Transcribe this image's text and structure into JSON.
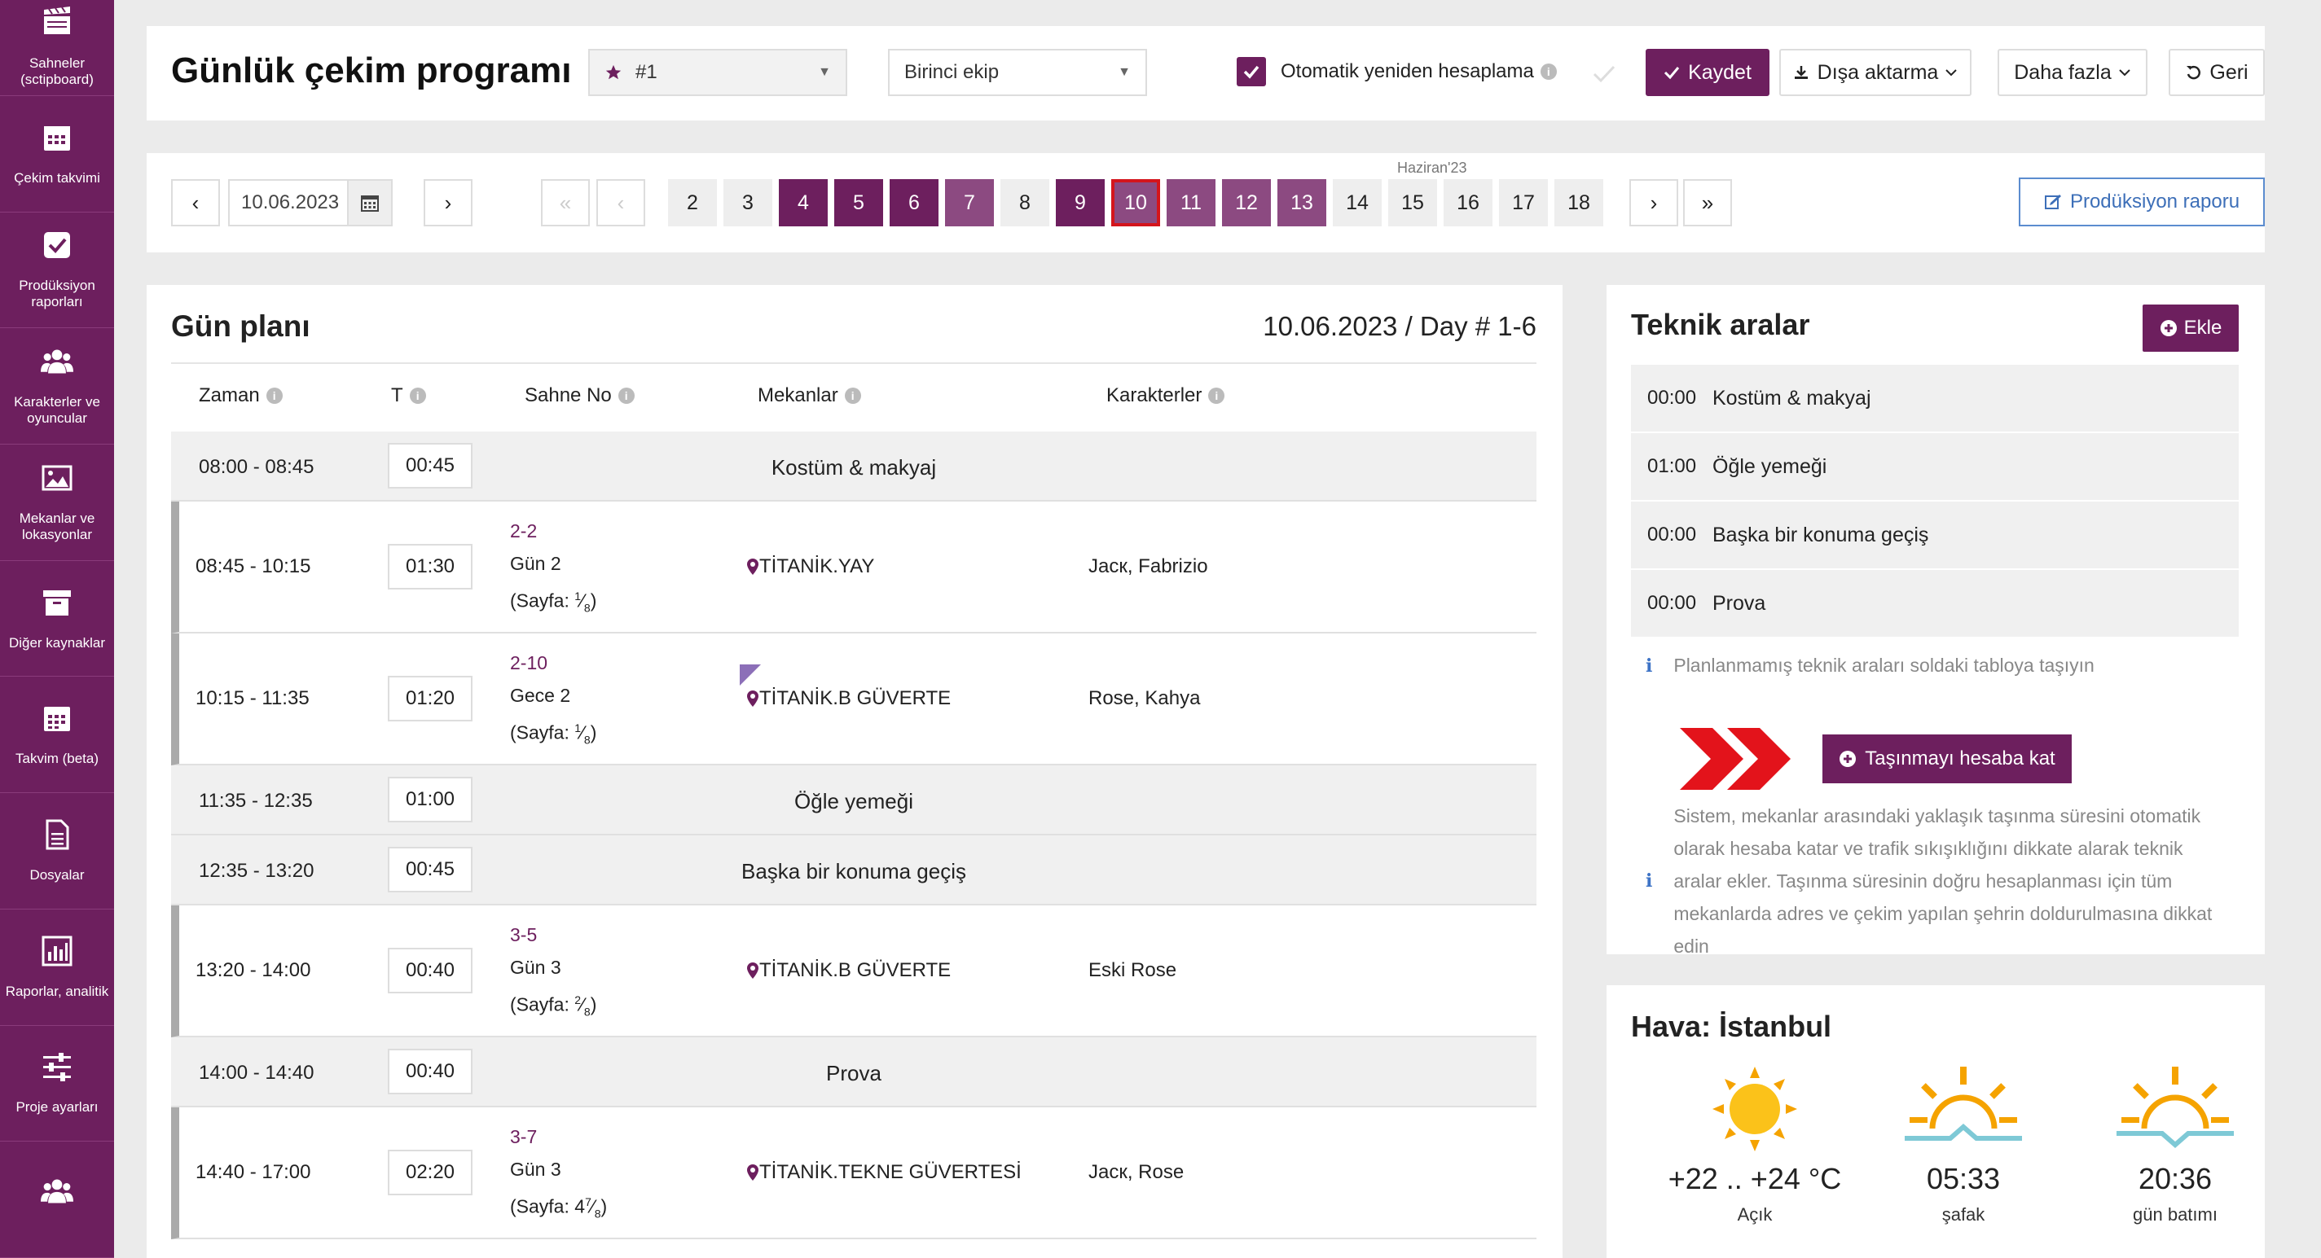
{
  "sidebar": {
    "items": [
      {
        "label": "Sahneler (sctipboard)",
        "icon": "clapperboard-icon"
      },
      {
        "label": "Çekim takvimi",
        "icon": "calendar-icon"
      },
      {
        "label": "Prodüksiyon raporları",
        "icon": "checkbox-icon"
      },
      {
        "label": "Karakterler ve oyuncular",
        "icon": "users-icon"
      },
      {
        "label": "Mekanlar ve lokasyonlar",
        "icon": "image-icon"
      },
      {
        "label": "Diğer kaynaklar",
        "icon": "archive-icon"
      },
      {
        "label": "Takvim (beta)",
        "icon": "calendar-icon"
      },
      {
        "label": "Dosyalar",
        "icon": "file-icon"
      },
      {
        "label": "Raporlar, analitik",
        "icon": "bar-chart-icon"
      },
      {
        "label": "Proje ayarları",
        "icon": "sliders-icon"
      },
      {
        "label": "",
        "icon": "users-icon"
      }
    ]
  },
  "header": {
    "title": "Günlük çekim programı",
    "schedule_select": "#1",
    "unit_select": "Birinci ekip",
    "auto_recalc_label": "Otomatik yeniden hesaplama",
    "save_label": "Kaydet",
    "export_label": "Dışa aktarma",
    "more_label": "Daha fazla",
    "back_label": "Geri"
  },
  "datebar": {
    "date_value": "10.06.2023",
    "month_label": "Haziran'23",
    "days": [
      "2",
      "3",
      "4",
      "5",
      "6",
      "7",
      "8",
      "9",
      "10",
      "11",
      "12",
      "13",
      "14",
      "15",
      "16",
      "17",
      "18"
    ],
    "production_report_label": "Prodüksiyon raporu"
  },
  "plan": {
    "title": "Gün planı",
    "date_label": "10.06.2023 / Day # 1-6",
    "columns": {
      "time": "Zaman",
      "t": "T",
      "scene": "Sahne No",
      "locations": "Mekanlar",
      "characters": "Karakterler"
    },
    "rows": [
      {
        "time": "08:00 - 08:45",
        "dur": "00:45",
        "name": "Kostüm & makyaj"
      },
      {
        "time": "08:45 - 10:15",
        "dur": "01:30",
        "scene": "2-2",
        "day": "Gün 2",
        "page_label": "(Sayfa:",
        "page_whole": "",
        "page_num": "1",
        "page_den": "8",
        "location": "TİTANİK.YAY",
        "characters": "Jacк, Fabrizio"
      },
      {
        "time": "10:15 - 11:35",
        "dur": "01:20",
        "scene": "2-10",
        "day": "Gece 2",
        "page_label": "(Sayfa:",
        "page_whole": "",
        "page_num": "1",
        "page_den": "8",
        "location": "TİTANİK.B GÜVERTE",
        "characters": "Rose, Kahya"
      },
      {
        "time": "11:35 - 12:35",
        "dur": "01:00",
        "name": "Öğle yemeği"
      },
      {
        "time": "12:35 - 13:20",
        "dur": "00:45",
        "name": "Başka bir konuma geçiş"
      },
      {
        "time": "13:20 - 14:00",
        "dur": "00:40",
        "scene": "3-5",
        "day": "Gün 3",
        "page_label": "(Sayfa:",
        "page_whole": "",
        "page_num": "2",
        "page_den": "8",
        "location": "TİTANİK.B GÜVERTE",
        "characters": "Eski Rose"
      },
      {
        "time": "14:00 - 14:40",
        "dur": "00:40",
        "name": "Prova"
      },
      {
        "time": "14:40 - 17:00",
        "dur": "02:20",
        "scene": "3-7",
        "day": "Gün 3",
        "page_label": "(Sayfa:",
        "page_whole": "4",
        "page_num": "7",
        "page_den": "8",
        "location": "TİTANİK.TEKNE GÜVERTESİ",
        "characters": "Jacк, Rose"
      }
    ]
  },
  "tech": {
    "title": "Teknik aralar",
    "add_label": "Ekle",
    "rows": [
      {
        "time": "00:00",
        "name": "Kostüm & makyaj"
      },
      {
        "time": "01:00",
        "name": "Öğle yemeği"
      },
      {
        "time": "00:00",
        "name": "Başka bir konuma geçiş"
      },
      {
        "time": "00:00",
        "name": "Prova"
      }
    ],
    "hint": "Planlanmamış teknik araları soldaki tabloya taşıyın",
    "travel_button": "Taşınmayı hesaba kat",
    "note": "Sistem, mekanlar arasındaki yaklaşık taşınma süresini otomatik olarak hesaba katar ve trafik sıkışıklığını dikkate alarak teknik aralar ekler. Taşınma süresinin doğru hesaplanması için tüm mekanlarda adres ve çekim yapılan şehrin doldurulmasına dikkat edin"
  },
  "weather": {
    "title": "Hava: İstanbul",
    "temp": "+22 .. +24 °C",
    "temp_label": "Açık",
    "sunrise": "05:33",
    "sunrise_label": "şafak",
    "sunset": "20:36",
    "sunset_label": "gün batımı"
  },
  "colors": {
    "accent": "#6d1f5e",
    "accent_light": "#8c4a81",
    "selected_outline": "#d4151c",
    "link_blue": "#3d6fb8",
    "sun": "#f5a300"
  }
}
